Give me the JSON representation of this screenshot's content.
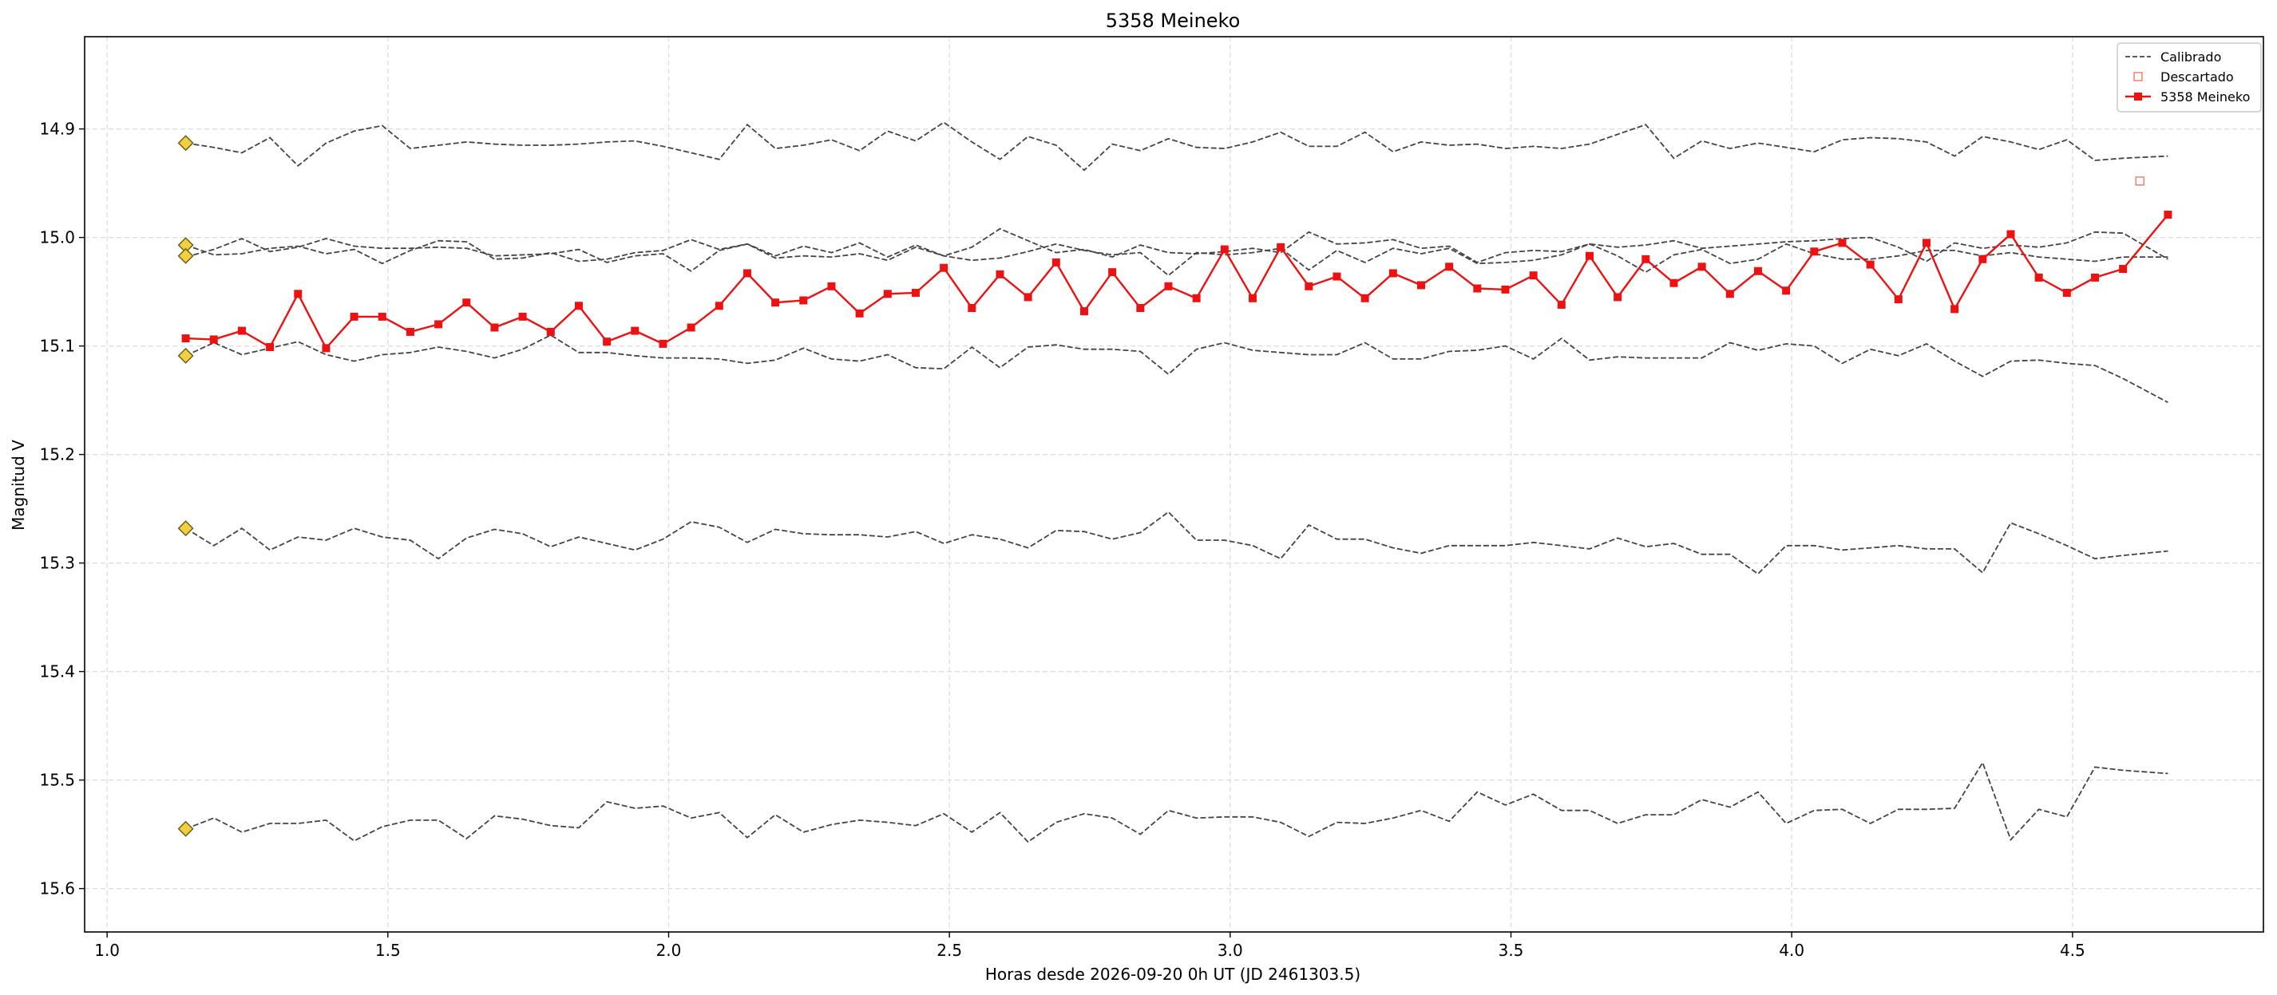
{
  "chart_data": {
    "type": "line",
    "title": "5358 Meineko",
    "xlabel": "Horas desde 2026-09-20 0h UT (JD 2461303.5)",
    "ylabel": "Magnitud V",
    "xlim": [
      0.96,
      4.84
    ],
    "ylim": [
      15.64,
      14.815
    ],
    "y_inverted": true,
    "grid": true,
    "legend_position": "top-right",
    "x_ticks": [
      1.0,
      1.5,
      2.0,
      2.5,
      3.0,
      3.5,
      4.0,
      4.5
    ],
    "x_tick_labels": [
      "1.0",
      "1.5",
      "2.0",
      "2.5",
      "3.0",
      "3.5",
      "4.0",
      "4.5"
    ],
    "y_ticks": [
      14.9,
      15.0,
      15.1,
      15.2,
      15.3,
      15.4,
      15.5,
      15.6
    ],
    "y_tick_labels": [
      "14.9",
      "15.0",
      "15.1",
      "15.2",
      "15.3",
      "15.4",
      "15.5",
      "15.6"
    ],
    "legend": [
      {
        "label": "Calibrado",
        "style": "dashed-line"
      },
      {
        "label": "Descartado",
        "style": "open-square"
      },
      {
        "label": "5358 Meineko",
        "style": "red-line-square"
      }
    ],
    "colors": {
      "target": "#ee1111",
      "comparison": "#444444",
      "discarded": "#f08070",
      "marker": "#f0d040",
      "grid": "#dddddd"
    },
    "comparison_start": {
      "x": 1.14,
      "y": [
        14.913,
        15.007,
        15.017,
        15.109,
        15.268,
        15.545
      ]
    },
    "discarded": [
      {
        "x": 4.62,
        "y": 14.948
      }
    ],
    "comparison_series": [
      {
        "label": "Calibrado",
        "x": [
          1.14,
          1.19,
          1.24,
          1.29,
          1.34,
          1.39,
          1.44,
          1.49,
          1.54,
          1.59,
          1.64,
          1.69,
          1.74,
          1.79,
          1.84,
          1.89,
          1.94,
          1.99,
          2.04,
          2.09,
          2.14,
          2.19,
          2.24,
          2.29,
          2.34,
          2.39,
          2.44,
          2.49,
          2.54,
          2.59,
          2.64,
          2.69,
          2.74,
          2.79,
          2.84,
          2.89,
          2.94,
          2.99,
          3.04,
          3.09,
          3.14,
          3.19,
          3.24,
          3.29,
          3.34,
          3.39,
          3.44,
          3.49,
          3.54,
          3.59,
          3.64,
          3.69,
          3.74,
          3.79,
          3.84,
          3.89,
          3.94,
          3.99,
          4.04,
          4.09,
          4.14,
          4.19,
          4.24,
          4.29,
          4.34,
          4.39,
          4.44,
          4.49,
          4.54,
          4.59,
          4.67
        ],
        "y": [
          14.913,
          14.917,
          14.922,
          14.908,
          14.934,
          14.913,
          14.902,
          14.897,
          14.918,
          14.915,
          14.912,
          14.914,
          14.915,
          14.915,
          14.914,
          14.912,
          14.911,
          14.916,
          14.922,
          14.928,
          14.896,
          14.918,
          14.915,
          14.91,
          14.92,
          14.902,
          14.911,
          14.894,
          14.912,
          14.928,
          14.907,
          14.915,
          14.938,
          14.914,
          14.92,
          14.909,
          14.917,
          14.918,
          14.912,
          14.903,
          14.916,
          14.916,
          14.903,
          14.921,
          14.912,
          14.915,
          14.914,
          14.918,
          14.916,
          14.918,
          14.914,
          14.905,
          14.896,
          14.927,
          14.911,
          14.918,
          14.913,
          14.917,
          14.921,
          14.91,
          14.908,
          14.909,
          14.912,
          14.925,
          14.907,
          14.912,
          14.919,
          14.91,
          14.929,
          14.927,
          14.925
        ]
      },
      {
        "label": "Calibrado",
        "x": [
          1.14,
          1.19,
          1.24,
          1.29,
          1.34,
          1.39,
          1.44,
          1.49,
          1.54,
          1.59,
          1.64,
          1.69,
          1.74,
          1.79,
          1.84,
          1.89,
          1.94,
          1.99,
          2.04,
          2.09,
          2.14,
          2.19,
          2.24,
          2.29,
          2.34,
          2.39,
          2.44,
          2.49,
          2.54,
          2.59,
          2.64,
          2.69,
          2.74,
          2.79,
          2.84,
          2.89,
          2.94,
          2.99,
          3.04,
          3.09,
          3.14,
          3.19,
          3.24,
          3.29,
          3.34,
          3.39,
          3.44,
          3.49,
          3.54,
          3.59,
          3.64,
          3.69,
          3.74,
          3.79,
          3.84,
          3.89,
          3.94,
          3.99,
          4.04,
          4.09,
          4.14,
          4.19,
          4.24,
          4.29,
          4.34,
          4.39,
          4.44,
          4.49,
          4.54,
          4.59,
          4.67
        ],
        "y": [
          15.018,
          15.011,
          15.001,
          15.013,
          15.009,
          15.001,
          15.008,
          15.01,
          15.01,
          15.009,
          15.01,
          15.017,
          15.016,
          15.015,
          15.011,
          15.023,
          15.017,
          15.015,
          15.031,
          15.012,
          15.006,
          15.019,
          15.017,
          15.018,
          15.015,
          15.021,
          15.009,
          15.017,
          15.021,
          15.019,
          15.013,
          15.006,
          15.012,
          15.016,
          15.014,
          15.035,
          15.014,
          15.016,
          15.014,
          15.01,
          15.03,
          15.012,
          15.023,
          15.01,
          15.015,
          15.01,
          15.024,
          15.023,
          15.021,
          15.016,
          15.006,
          15.017,
          15.032,
          15.016,
          15.011,
          15.024,
          15.02,
          15.006,
          15.015,
          15.02,
          15.02,
          15.017,
          15.012,
          15.012,
          15.017,
          15.014,
          15.018,
          15.02,
          15.022,
          15.018,
          15.018
        ]
      },
      {
        "label": "Calibrado",
        "x": [
          1.14,
          1.19,
          1.24,
          1.29,
          1.34,
          1.39,
          1.44,
          1.49,
          1.54,
          1.59,
          1.64,
          1.69,
          1.74,
          1.79,
          1.84,
          1.89,
          1.94,
          1.99,
          2.04,
          2.09,
          2.14,
          2.19,
          2.24,
          2.29,
          2.34,
          2.39,
          2.44,
          2.49,
          2.54,
          2.59,
          2.64,
          2.69,
          2.74,
          2.79,
          2.84,
          2.89,
          2.94,
          2.99,
          3.04,
          3.09,
          3.14,
          3.19,
          3.24,
          3.29,
          3.34,
          3.39,
          3.44,
          3.49,
          3.54,
          3.59,
          3.64,
          3.69,
          3.74,
          3.79,
          3.84,
          3.89,
          3.94,
          3.99,
          4.04,
          4.09,
          4.14,
          4.19,
          4.24,
          4.29,
          4.34,
          4.39,
          4.44,
          4.49,
          4.54,
          4.59,
          4.67
        ],
        "y": [
          15.007,
          15.016,
          15.015,
          15.01,
          15.008,
          15.015,
          15.011,
          15.024,
          15.012,
          15.003,
          15.004,
          15.02,
          15.019,
          15.014,
          15.022,
          15.02,
          15.014,
          15.012,
          15.002,
          15.011,
          15.006,
          15.017,
          15.008,
          15.014,
          15.005,
          15.018,
          15.007,
          15.017,
          15.009,
          14.992,
          15.003,
          15.014,
          15.011,
          15.018,
          15.007,
          15.014,
          15.015,
          15.013,
          15.01,
          15.014,
          14.995,
          15.006,
          15.005,
          15.002,
          15.01,
          15.008,
          15.023,
          15.014,
          15.012,
          15.013,
          15.006,
          15.009,
          15.007,
          15.003,
          15.01,
          15.008,
          15.006,
          15.004,
          15.003,
          15.001,
          15.0,
          15.009,
          15.022,
          15.005,
          15.01,
          15.007,
          15.009,
          15.005,
          14.995,
          14.996,
          15.02
        ]
      },
      {
        "label": "Calibrado",
        "x": [
          1.14,
          1.19,
          1.24,
          1.29,
          1.34,
          1.39,
          1.44,
          1.49,
          1.54,
          1.59,
          1.64,
          1.69,
          1.74,
          1.79,
          1.84,
          1.89,
          1.94,
          1.99,
          2.04,
          2.09,
          2.14,
          2.19,
          2.24,
          2.29,
          2.34,
          2.39,
          2.44,
          2.49,
          2.54,
          2.59,
          2.64,
          2.69,
          2.74,
          2.79,
          2.84,
          2.89,
          2.94,
          2.99,
          3.04,
          3.09,
          3.14,
          3.19,
          3.24,
          3.29,
          3.34,
          3.39,
          3.44,
          3.49,
          3.54,
          3.59,
          3.64,
          3.69,
          3.74,
          3.79,
          3.84,
          3.89,
          3.94,
          3.99,
          4.04,
          4.09,
          4.14,
          4.19,
          4.24,
          4.29,
          4.34,
          4.39,
          4.44,
          4.49,
          4.54,
          4.59,
          4.67
        ],
        "y": [
          15.109,
          15.097,
          15.108,
          15.102,
          15.096,
          15.108,
          15.114,
          15.108,
          15.106,
          15.101,
          15.105,
          15.111,
          15.103,
          15.09,
          15.106,
          15.106,
          15.109,
          15.111,
          15.111,
          15.112,
          15.116,
          15.113,
          15.102,
          15.112,
          15.114,
          15.108,
          15.12,
          15.121,
          15.101,
          15.12,
          15.101,
          15.099,
          15.103,
          15.103,
          15.105,
          15.126,
          15.103,
          15.097,
          15.104,
          15.106,
          15.108,
          15.108,
          15.097,
          15.112,
          15.112,
          15.105,
          15.104,
          15.1,
          15.112,
          15.093,
          15.113,
          15.11,
          15.111,
          15.111,
          15.111,
          15.097,
          15.104,
          15.098,
          15.1,
          15.116,
          15.103,
          15.109,
          15.098,
          15.114,
          15.128,
          15.114,
          15.113,
          15.116,
          15.118,
          15.13,
          15.152
        ]
      },
      {
        "label": "Calibrado",
        "x": [
          1.14,
          1.19,
          1.24,
          1.29,
          1.34,
          1.39,
          1.44,
          1.49,
          1.54,
          1.59,
          1.64,
          1.69,
          1.74,
          1.79,
          1.84,
          1.89,
          1.94,
          1.99,
          2.04,
          2.09,
          2.14,
          2.19,
          2.24,
          2.29,
          2.34,
          2.39,
          2.44,
          2.49,
          2.54,
          2.59,
          2.64,
          2.69,
          2.74,
          2.79,
          2.84,
          2.89,
          2.94,
          2.99,
          3.04,
          3.09,
          3.14,
          3.19,
          3.24,
          3.29,
          3.34,
          3.39,
          3.44,
          3.49,
          3.54,
          3.59,
          3.64,
          3.69,
          3.74,
          3.79,
          3.84,
          3.89,
          3.94,
          3.99,
          4.04,
          4.09,
          4.14,
          4.19,
          4.24,
          4.29,
          4.34,
          4.39,
          4.44,
          4.49,
          4.54,
          4.59,
          4.67
        ],
        "y": [
          15.268,
          15.284,
          15.268,
          15.288,
          15.276,
          15.279,
          15.268,
          15.276,
          15.279,
          15.296,
          15.277,
          15.269,
          15.273,
          15.285,
          15.276,
          15.282,
          15.288,
          15.278,
          15.262,
          15.267,
          15.281,
          15.269,
          15.273,
          15.274,
          15.274,
          15.276,
          15.271,
          15.282,
          15.274,
          15.278,
          15.286,
          15.27,
          15.271,
          15.278,
          15.272,
          15.253,
          15.279,
          15.279,
          15.284,
          15.296,
          15.265,
          15.278,
          15.278,
          15.286,
          15.291,
          15.284,
          15.284,
          15.284,
          15.281,
          15.284,
          15.287,
          15.277,
          15.285,
          15.282,
          15.292,
          15.292,
          15.31,
          15.284,
          15.284,
          15.288,
          15.286,
          15.284,
          15.287,
          15.287,
          15.309,
          15.263,
          15.273,
          15.284,
          15.296,
          15.293,
          15.289
        ]
      },
      {
        "label": "Calibrado",
        "x": [
          1.14,
          1.19,
          1.24,
          1.29,
          1.34,
          1.39,
          1.44,
          1.49,
          1.54,
          1.59,
          1.64,
          1.69,
          1.74,
          1.79,
          1.84,
          1.89,
          1.94,
          1.99,
          2.04,
          2.09,
          2.14,
          2.19,
          2.24,
          2.29,
          2.34,
          2.39,
          2.44,
          2.49,
          2.54,
          2.59,
          2.64,
          2.69,
          2.74,
          2.79,
          2.84,
          2.89,
          2.94,
          2.99,
          3.04,
          3.09,
          3.14,
          3.19,
          3.24,
          3.29,
          3.34,
          3.39,
          3.44,
          3.49,
          3.54,
          3.59,
          3.64,
          3.69,
          3.74,
          3.79,
          3.84,
          3.89,
          3.94,
          3.99,
          4.04,
          4.09,
          4.14,
          4.19,
          4.24,
          4.29,
          4.34,
          4.39,
          4.44,
          4.49,
          4.54,
          4.59,
          4.67
        ],
        "y": [
          15.545,
          15.535,
          15.548,
          15.54,
          15.54,
          15.537,
          15.556,
          15.543,
          15.537,
          15.537,
          15.554,
          15.533,
          15.536,
          15.542,
          15.544,
          15.52,
          15.526,
          15.524,
          15.535,
          15.53,
          15.553,
          15.532,
          15.548,
          15.541,
          15.537,
          15.539,
          15.542,
          15.531,
          15.548,
          15.53,
          15.557,
          15.539,
          15.531,
          15.535,
          15.55,
          15.528,
          15.535,
          15.534,
          15.534,
          15.539,
          15.552,
          15.539,
          15.54,
          15.535,
          15.528,
          15.538,
          15.511,
          15.523,
          15.513,
          15.528,
          15.528,
          15.54,
          15.532,
          15.532,
          15.518,
          15.525,
          15.511,
          15.54,
          15.528,
          15.527,
          15.54,
          15.527,
          15.527,
          15.526,
          15.484,
          15.555,
          15.527,
          15.534,
          15.488,
          15.491,
          15.494
        ]
      }
    ],
    "target_series": {
      "label": "5358 Meineko",
      "x": [
        1.14,
        1.19,
        1.24,
        1.29,
        1.34,
        1.39,
        1.44,
        1.49,
        1.54,
        1.59,
        1.64,
        1.69,
        1.74,
        1.79,
        1.84,
        1.89,
        1.94,
        1.99,
        2.04,
        2.09,
        2.14,
        2.19,
        2.24,
        2.29,
        2.34,
        2.39,
        2.44,
        2.49,
        2.54,
        2.59,
        2.64,
        2.69,
        2.74,
        2.79,
        2.84,
        2.89,
        2.94,
        2.99,
        3.04,
        3.09,
        3.14,
        3.19,
        3.24,
        3.29,
        3.34,
        3.39,
        3.44,
        3.49,
        3.54,
        3.59,
        3.64,
        3.69,
        3.74,
        3.79,
        3.84,
        3.89,
        3.94,
        3.99,
        4.04,
        4.09,
        4.14,
        4.19,
        4.24,
        4.29,
        4.34,
        4.39,
        4.44,
        4.49,
        4.54,
        4.59,
        4.67
      ],
      "y": [
        15.093,
        15.094,
        15.086,
        15.101,
        15.052,
        15.102,
        15.073,
        15.073,
        15.087,
        15.08,
        15.06,
        15.083,
        15.073,
        15.087,
        15.063,
        15.096,
        15.086,
        15.098,
        15.083,
        15.063,
        15.033,
        15.06,
        15.058,
        15.045,
        15.07,
        15.052,
        15.051,
        15.028,
        15.065,
        15.034,
        15.055,
        15.023,
        15.068,
        15.032,
        15.065,
        15.045,
        15.056,
        15.011,
        15.056,
        15.009,
        15.045,
        15.036,
        15.056,
        15.033,
        15.044,
        15.027,
        15.047,
        15.048,
        15.035,
        15.062,
        15.017,
        15.055,
        15.02,
        15.042,
        15.027,
        15.052,
        15.031,
        15.049,
        15.013,
        15.005,
        15.025,
        15.057,
        15.005,
        15.066,
        15.02,
        14.997,
        15.037,
        15.051,
        15.037,
        15.029,
        14.979
      ]
    }
  }
}
